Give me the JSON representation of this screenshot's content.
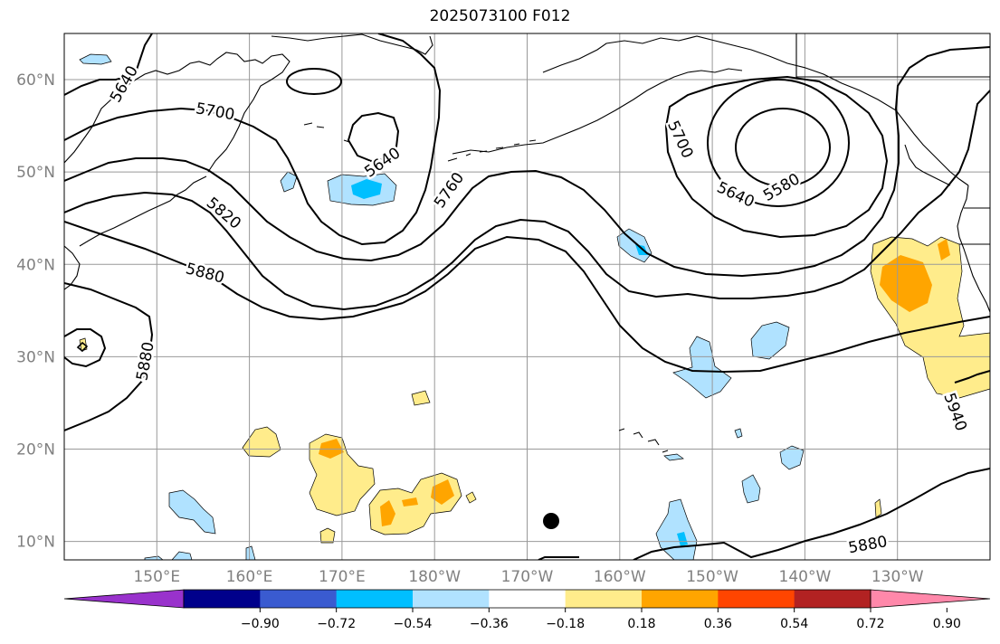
{
  "title": "2025073100 F012",
  "lat_labels": [
    "60°N",
    "50°N",
    "40°N",
    "30°N",
    "20°N",
    "10°N"
  ],
  "lon_labels": [
    "150°E",
    "160°E",
    "170°E",
    "180°W",
    "170°W",
    "160°W",
    "150°W",
    "140°W",
    "130°W"
  ],
  "lon_range": [
    140,
    240
  ],
  "lat_range": [
    8,
    65
  ],
  "lat_ticks": [
    60,
    50,
    40,
    30,
    20,
    10
  ],
  "lon_ticks": [
    150,
    160,
    170,
    180,
    190,
    200,
    210,
    220,
    230
  ],
  "contour_labels": [
    {
      "text": "5640",
      "lon": 146.5,
      "lat": 59.5,
      "angle": -60
    },
    {
      "text": "5700",
      "lon": 156.3,
      "lat": 56.5,
      "angle": 10
    },
    {
      "text": "5820",
      "lon": 157.2,
      "lat": 45.5,
      "angle": 40
    },
    {
      "text": "5880",
      "lon": 155.2,
      "lat": 39.0,
      "angle": 15
    },
    {
      "text": "5880",
      "lon": 148.8,
      "lat": 29.5,
      "angle": -80
    },
    {
      "text": "5640",
      "lon": 174.4,
      "lat": 51.0,
      "angle": -35
    },
    {
      "text": "5760",
      "lon": 181.6,
      "lat": 48.0,
      "angle": -55
    },
    {
      "text": "5700",
      "lon": 206.5,
      "lat": 53.5,
      "angle": 65
    },
    {
      "text": "5640",
      "lon": 212.5,
      "lat": 47.5,
      "angle": 25
    },
    {
      "text": "5580",
      "lon": 217.5,
      "lat": 48.3,
      "angle": -30
    },
    {
      "text": "5940",
      "lon": 236.2,
      "lat": 24.0,
      "angle": 70
    },
    {
      "text": "5880",
      "lon": 226.8,
      "lat": 9.6,
      "angle": -10
    }
  ],
  "colorbar": {
    "colors": [
      "#9932cc",
      "#00008b",
      "#3a5bd0",
      "#00bfff",
      "#b0e2ff",
      "#ffffff",
      "#ffec8b",
      "#ffa500",
      "#ff4500",
      "#b22222",
      "#ff88aa"
    ],
    "tick_labels": [
      "−0.90",
      "−0.72",
      "−0.54",
      "−0.36",
      "−0.18",
      "0.18",
      "0.36",
      "0.54",
      "0.72",
      "0.90"
    ]
  },
  "colors": {
    "pos_light": "#ffec8b",
    "pos_mid": "#ffa500",
    "neg_light": "#b0e2ff",
    "neg_mid": "#00bfff",
    "grid": "#999999",
    "tick_text": "#808080"
  }
}
